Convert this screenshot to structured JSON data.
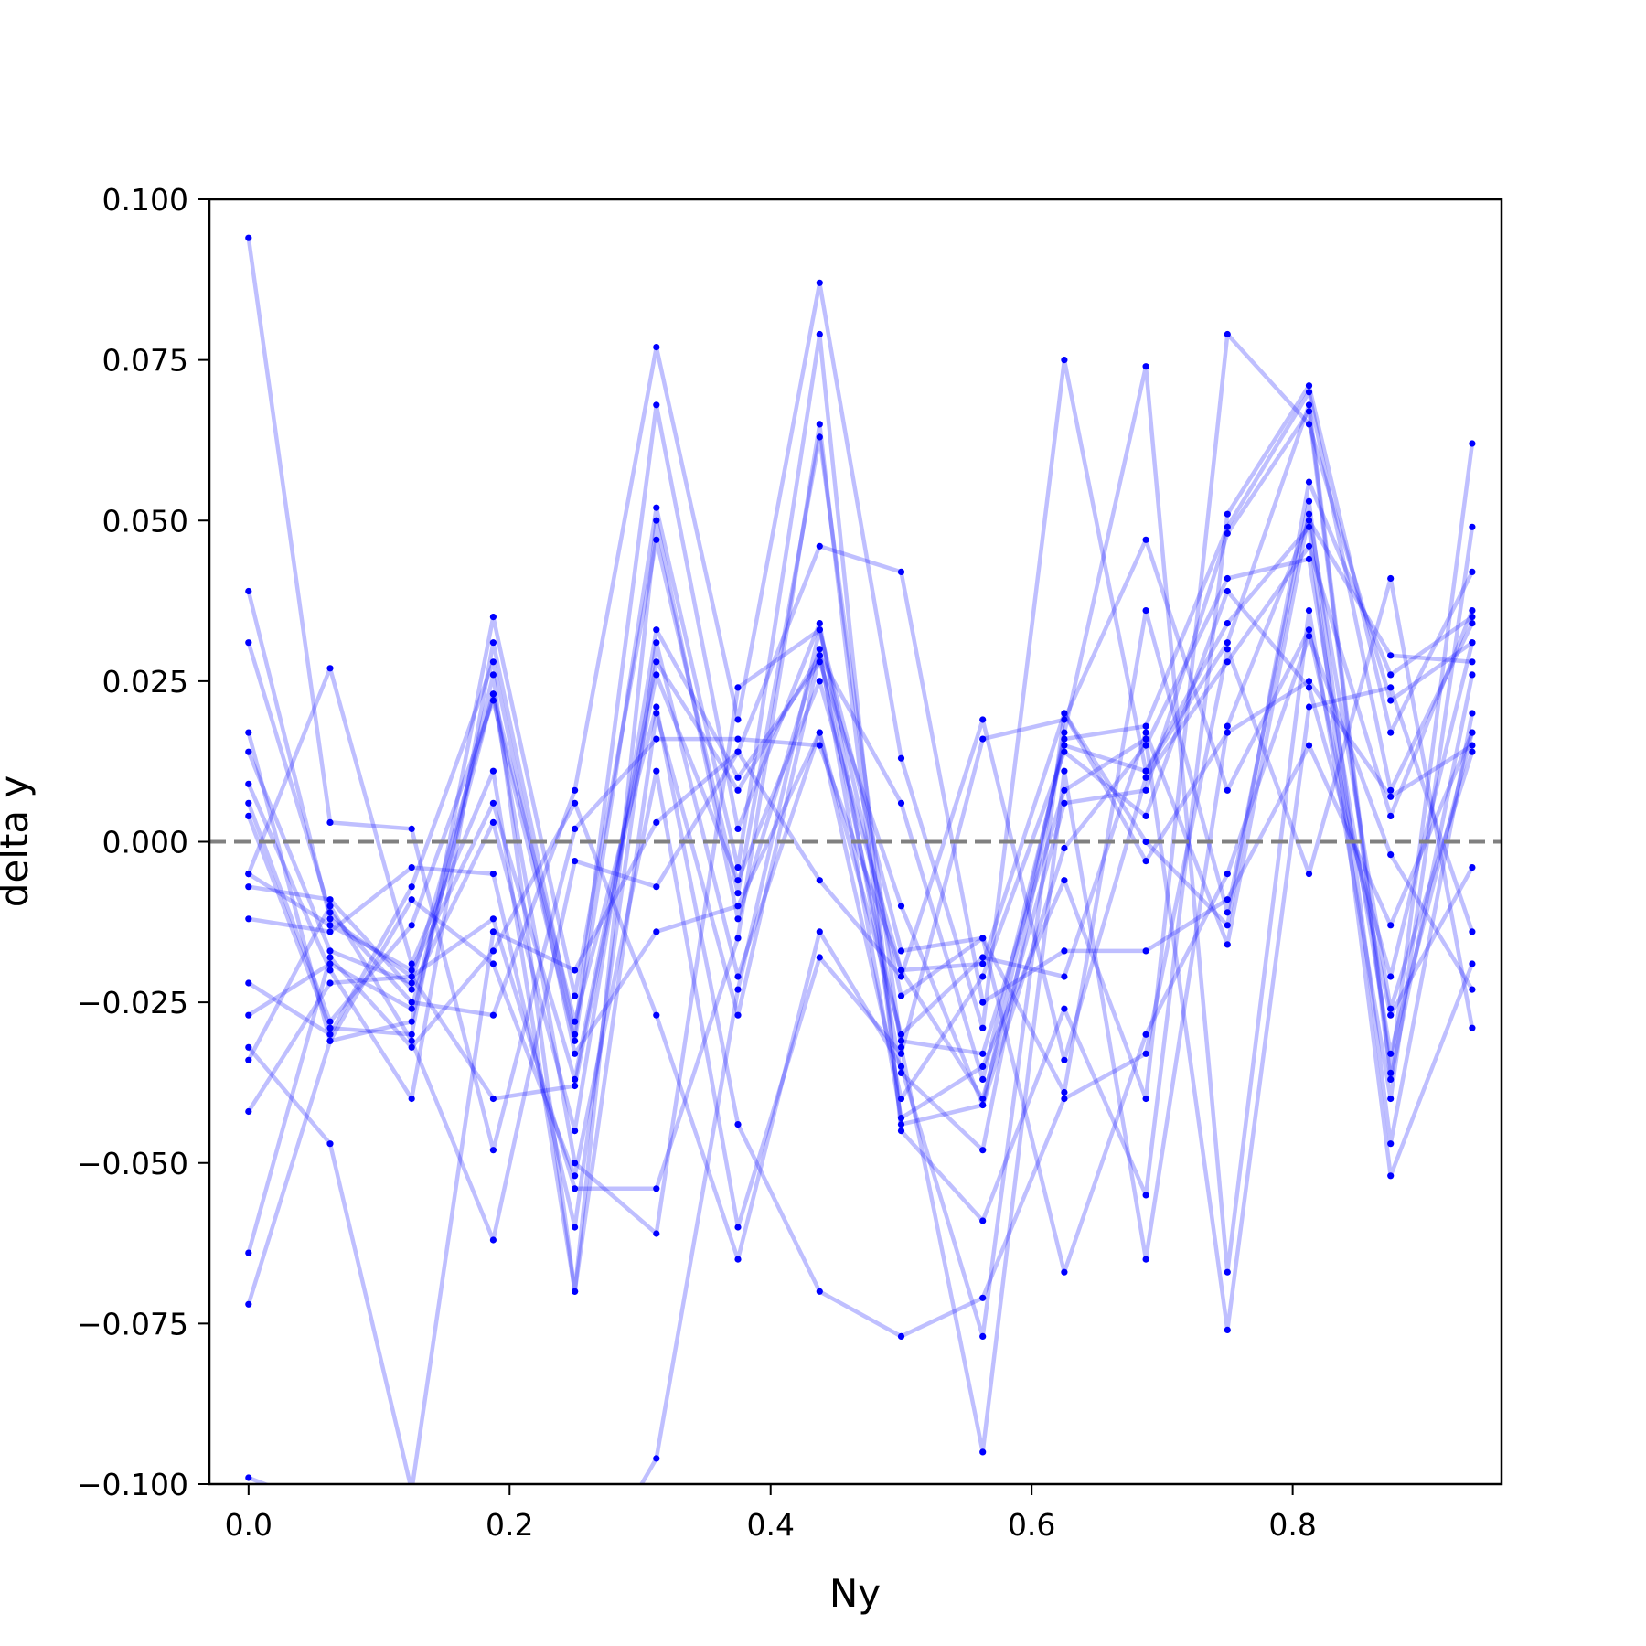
{
  "chart_data": {
    "type": "line",
    "title": "",
    "xlabel": "Ny",
    "ylabel": "delta y",
    "xlim": [
      -0.03,
      0.96
    ],
    "ylim": [
      -0.1,
      0.1
    ],
    "xticks": [
      0.0,
      0.2,
      0.4,
      0.6,
      0.8
    ],
    "xtick_labels": [
      "0.0",
      "0.2",
      "0.4",
      "0.6",
      "0.8"
    ],
    "yticks": [
      0.1,
      0.075,
      0.05,
      0.025,
      0.0,
      -0.025,
      -0.05,
      -0.075,
      -0.1
    ],
    "ytick_labels": [
      "0.100",
      "0.075",
      "0.050",
      "0.025",
      "0.000",
      "−0.025",
      "−0.050",
      "−0.075",
      "−0.100"
    ],
    "grid": false,
    "reference_line": {
      "y": 0.0,
      "style": "dashed",
      "color": "#808080"
    },
    "colors": {
      "series": "#0000ff",
      "line_alpha": 0.25
    },
    "x": [
      0.0,
      0.0625,
      0.125,
      0.1875,
      0.25,
      0.3125,
      0.375,
      0.4375,
      0.5,
      0.5625,
      0.625,
      0.6875,
      0.75,
      0.8125,
      0.875,
      0.9375
    ],
    "series": [
      {
        "values": [
          0.094,
          0.003,
          0.002,
          -0.048,
          0.002,
          0.016,
          0.016,
          0.015,
          -0.02,
          -0.019,
          0.02,
          0.0,
          -0.013,
          0.056,
          0.026,
          0.035
        ]
      },
      {
        "values": [
          0.039,
          -0.012,
          -0.021,
          -0.012,
          -0.054,
          -0.054,
          -0.015,
          0.065,
          -0.044,
          -0.041,
          0.016,
          0.018,
          0.049,
          0.07,
          0.008,
          0.034
        ]
      },
      {
        "values": [
          0.031,
          -0.011,
          -0.025,
          -0.027,
          0.008,
          0.077,
          0.019,
          0.087,
          0.013,
          -0.029,
          0.075,
          0.011,
          0.031,
          0.068,
          -0.036,
          0.062
        ]
      },
      {
        "values": [
          0.017,
          -0.031,
          -0.028,
          0.026,
          -0.07,
          0.05,
          -0.012,
          0.03,
          -0.043,
          -0.035,
          -0.006,
          -0.04,
          0.079,
          0.065,
          0.022,
          0.031
        ]
      },
      {
        "values": [
          0.014,
          -0.017,
          -0.022,
          0.023,
          -0.05,
          -0.061,
          0.024,
          0.033,
          -0.017,
          -0.015,
          -0.039,
          0.036,
          -0.011,
          0.053,
          -0.047,
          0.02
        ]
      },
      {
        "values": [
          0.009,
          -0.02,
          -0.04,
          0.031,
          -0.03,
          0.068,
          0.002,
          0.034,
          -0.036,
          -0.048,
          0.017,
          0.074,
          -0.067,
          0.036,
          -0.04,
          0.049
        ]
      },
      {
        "values": [
          0.006,
          -0.028,
          -0.013,
          0.022,
          -0.031,
          0.052,
          -0.004,
          0.079,
          -0.045,
          -0.059,
          -0.026,
          -0.055,
          0.051,
          0.071,
          0.017,
          0.042
        ]
      },
      {
        "values": [
          0.004,
          -0.029,
          -0.03,
          0.035,
          -0.024,
          0.047,
          -0.008,
          0.063,
          -0.032,
          -0.095,
          0.011,
          -0.065,
          0.018,
          0.05,
          0.029,
          0.028
        ]
      },
      {
        "values": [
          -0.005,
          0.027,
          -0.019,
          0.011,
          -0.07,
          0.02,
          -0.027,
          0.029,
          -0.031,
          -0.033,
          0.008,
          0.016,
          -0.076,
          0.021,
          0.024,
          -0.014
        ]
      },
      {
        "values": [
          -0.005,
          -0.013,
          -0.02,
          0.006,
          -0.037,
          0.028,
          0.008,
          0.029,
          0.006,
          -0.037,
          0.015,
          0.011,
          0.034,
          0.049,
          -0.052,
          -0.019
        ]
      },
      {
        "values": [
          -0.007,
          -0.009,
          -0.023,
          0.003,
          -0.045,
          0.033,
          0.01,
          0.028,
          -0.01,
          -0.041,
          -0.001,
          0.015,
          0.041,
          0.044,
          -0.033,
          0.017
        ]
      },
      {
        "values": [
          -0.012,
          -0.014,
          -0.004,
          -0.005,
          -0.06,
          0.031,
          -0.021,
          0.017,
          -0.04,
          -0.021,
          0.014,
          0.004,
          0.039,
          0.024,
          -0.021,
          0.031
        ]
      },
      {
        "values": [
          -0.022,
          -0.03,
          -0.007,
          0.028,
          -0.033,
          -0.014,
          -0.01,
          0.017,
          -0.03,
          -0.018,
          -0.021,
          0.017,
          -0.016,
          0.051,
          -0.026,
          0.014
        ]
      },
      {
        "values": [
          -0.027,
          -0.019,
          -0.026,
          0.023,
          -0.028,
          0.021,
          -0.044,
          -0.07,
          -0.077,
          -0.071,
          -0.04,
          -0.033,
          0.03,
          -0.005,
          0.041,
          -0.029
        ]
      },
      {
        "values": [
          -0.032,
          -0.047,
          -0.101,
          -0.014,
          -0.02,
          0.003,
          0.014,
          -0.006,
          -0.021,
          0.019,
          -0.034,
          0.01,
          0.028,
          0.046,
          0.004,
          0.036
        ]
      },
      {
        "values": [
          -0.034,
          -0.01,
          -0.031,
          -0.062,
          -0.003,
          -0.007,
          0.014,
          0.046,
          0.042,
          -0.025,
          -0.017,
          -0.017,
          -0.009,
          0.015,
          -0.013,
          0.017
        ]
      },
      {
        "values": [
          -0.042,
          -0.022,
          -0.021,
          -0.04,
          -0.038,
          0.026,
          -0.006,
          0.025,
          -0.02,
          -0.04,
          0.006,
          0.008,
          0.048,
          0.067,
          -0.037,
          0.026
        ]
      },
      {
        "values": [
          -0.064,
          -0.018,
          -0.032,
          -0.017,
          0.006,
          -0.027,
          -0.065,
          -0.014,
          -0.035,
          -0.077,
          0.02,
          -0.003,
          0.017,
          0.025,
          0.007,
          0.015
        ]
      },
      {
        "values": [
          -0.072,
          -0.031,
          -0.009,
          -0.019,
          -0.052,
          0.011,
          -0.06,
          -0.018,
          -0.033,
          0.016,
          0.019,
          0.047,
          0.008,
          0.033,
          -0.027,
          -0.004
        ]
      },
      {
        "values": [
          -0.099,
          -0.104,
          -0.113,
          -0.108,
          -0.118,
          -0.096,
          -0.023,
          0.033,
          -0.024,
          -0.015,
          -0.067,
          -0.03,
          -0.005,
          0.032,
          -0.002,
          -0.023
        ]
      }
    ]
  }
}
